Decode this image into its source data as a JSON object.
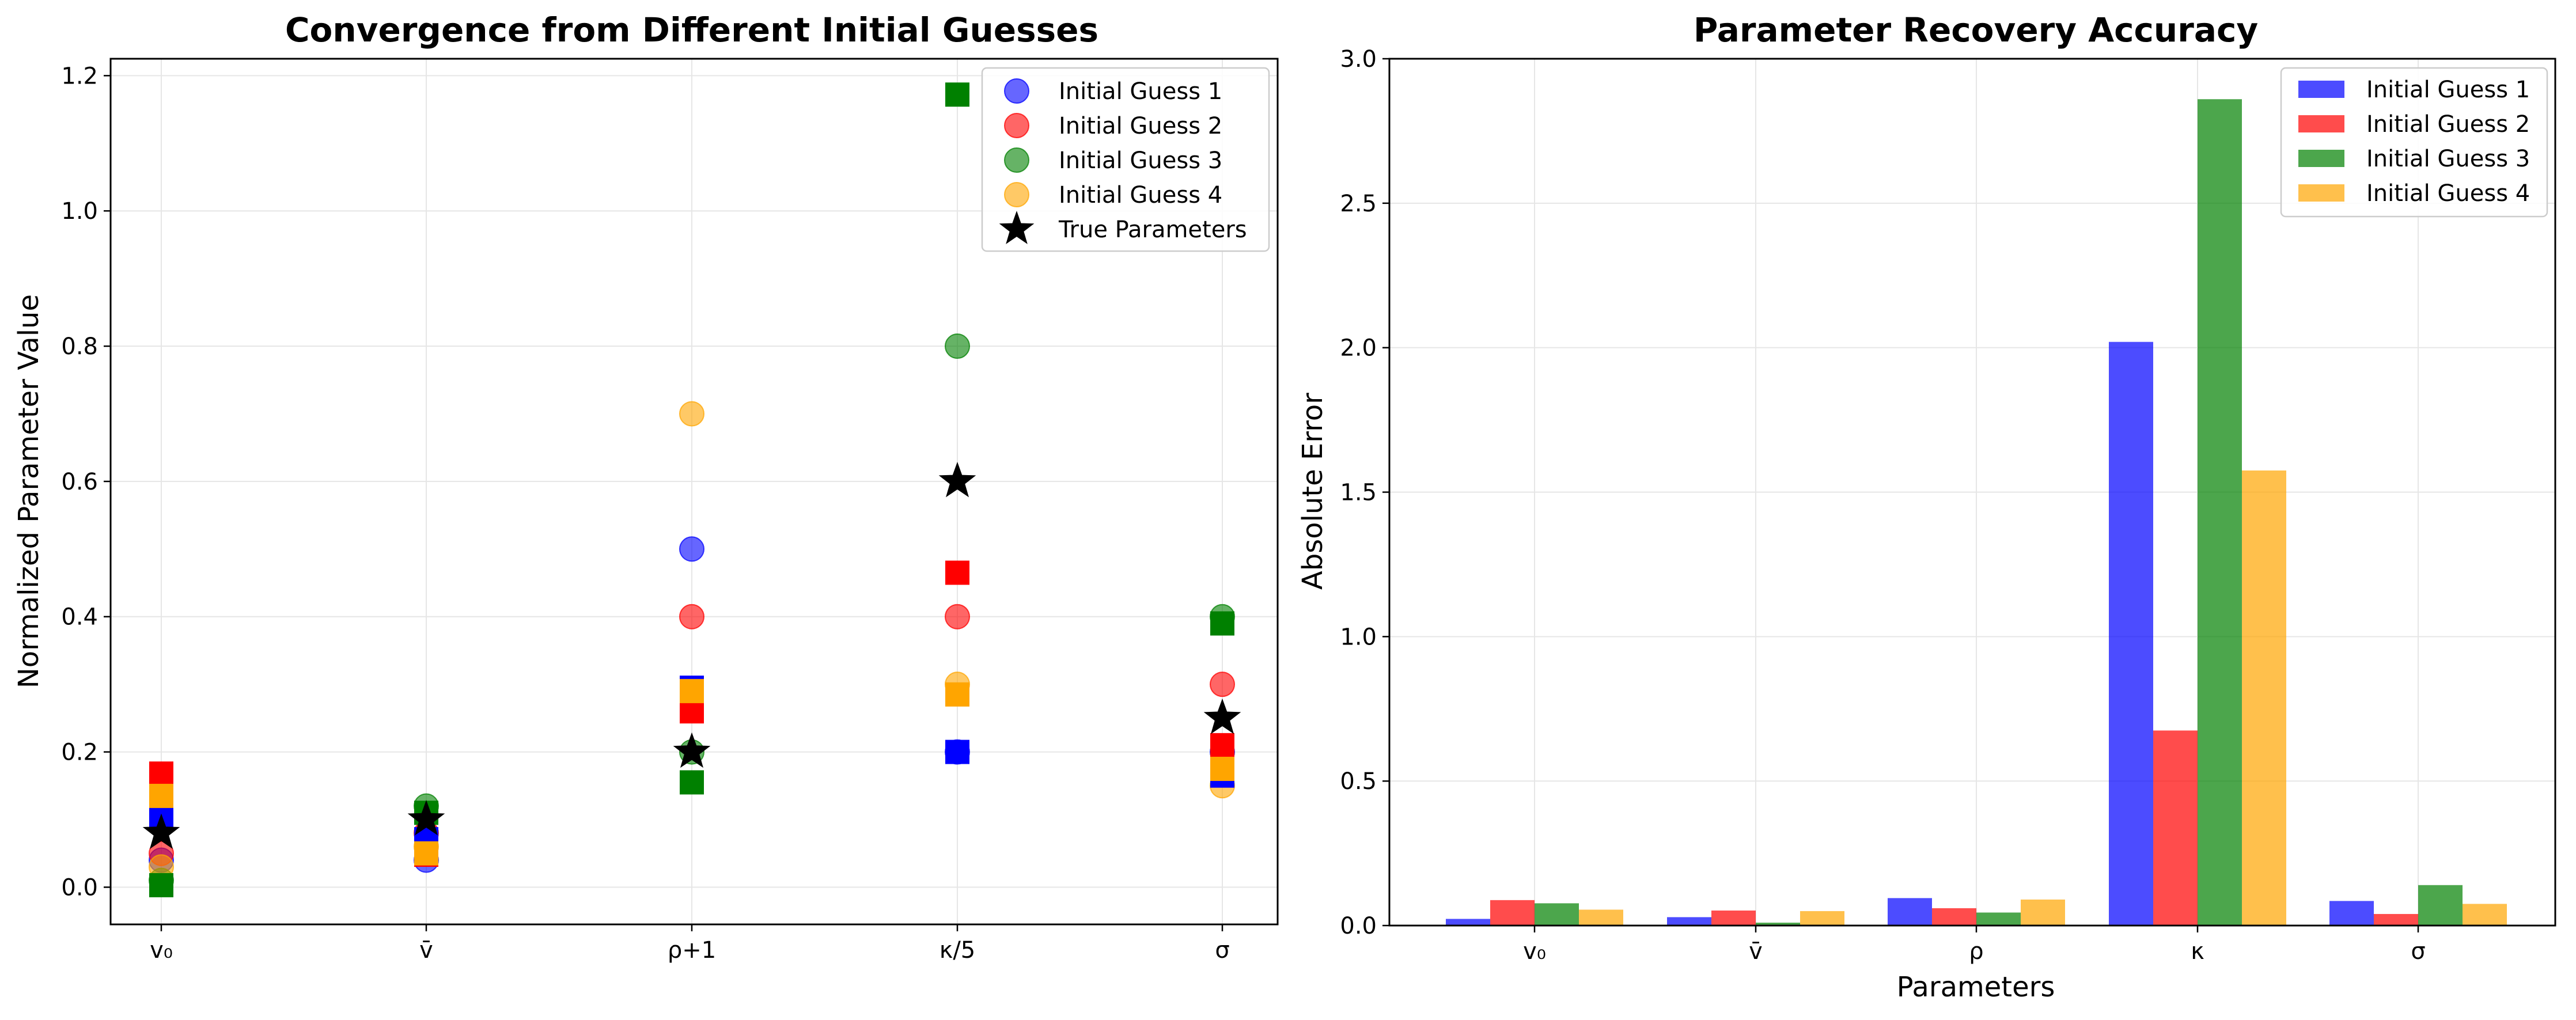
{
  "colors": {
    "guess1": "#0000ff",
    "guess2": "#ff0000",
    "guess3": "#008000",
    "guess4": "#ffa500",
    "true": "#000000",
    "grid": "#e6e6e6"
  },
  "chart_data": [
    {
      "type": "scatter",
      "title": "Convergence from Different Initial Guesses",
      "xlabel": "",
      "ylabel": "Normalized Parameter Value",
      "categories": [
        "v₀",
        "v̄",
        "ρ+1",
        "κ/5",
        "σ"
      ],
      "ylim": [
        -0.055,
        1.225
      ],
      "yticks": [
        "0.0",
        "0.2",
        "0.4",
        "0.6",
        "0.8",
        "1.0",
        "1.2"
      ],
      "grid": true,
      "legend_position": "top-right",
      "legend": [
        "Initial Guess 1",
        "Initial Guess 2",
        "Initial Guess 3",
        "Initial Guess 4",
        "True Parameters"
      ],
      "initial_guesses": [
        {
          "name": "Initial Guess 1",
          "color": "guess1",
          "values": [
            0.04,
            0.04,
            0.5,
            0.2,
            0.2
          ]
        },
        {
          "name": "Initial Guess 2",
          "color": "guess2",
          "values": [
            0.05,
            0.08,
            0.4,
            0.4,
            0.3
          ]
        },
        {
          "name": "Initial Guess 3",
          "color": "guess3",
          "values": [
            0.01,
            0.12,
            0.2,
            0.8,
            0.4
          ]
        },
        {
          "name": "Initial Guess 4",
          "color": "guess4",
          "values": [
            0.03,
            0.06,
            0.7,
            0.3,
            0.15
          ]
        }
      ],
      "final_estimates": [
        {
          "color": "guess1",
          "values": [
            0.103,
            0.071,
            0.295,
            0.2,
            0.165
          ]
        },
        {
          "color": "guess2",
          "values": [
            0.168,
            0.048,
            0.26,
            0.465,
            0.21
          ]
        },
        {
          "color": "guess3",
          "values": [
            0.003,
            0.11,
            0.155,
            1.172,
            0.39
          ]
        },
        {
          "color": "guess4",
          "values": [
            0.135,
            0.05,
            0.29,
            0.285,
            0.175
          ]
        }
      ],
      "true_parameters": {
        "name": "True Parameters",
        "color": "true",
        "values": [
          0.08,
          0.1,
          0.2,
          0.6,
          0.25
        ]
      }
    },
    {
      "type": "bar",
      "title": "Parameter Recovery Accuracy",
      "xlabel": "Parameters",
      "ylabel": "Absolute Error",
      "categories": [
        "v₀",
        "v̄",
        "ρ",
        "κ",
        "σ"
      ],
      "ylim": [
        0,
        3.0
      ],
      "yticks": [
        "0.0",
        "0.5",
        "1.0",
        "1.5",
        "2.0",
        "2.5",
        "3.0"
      ],
      "grid": true,
      "legend_position": "top-right",
      "series": [
        {
          "name": "Initial Guess 1",
          "color": "guess1",
          "values": [
            0.023,
            0.029,
            0.095,
            2.02,
            0.085
          ]
        },
        {
          "name": "Initial Guess 2",
          "color": "guess2",
          "values": [
            0.088,
            0.052,
            0.06,
            0.675,
            0.04
          ]
        },
        {
          "name": "Initial Guess 3",
          "color": "guess3",
          "values": [
            0.077,
            0.01,
            0.045,
            2.86,
            0.14
          ]
        },
        {
          "name": "Initial Guess 4",
          "color": "guess4",
          "values": [
            0.055,
            0.05,
            0.09,
            1.575,
            0.075
          ]
        }
      ]
    }
  ]
}
